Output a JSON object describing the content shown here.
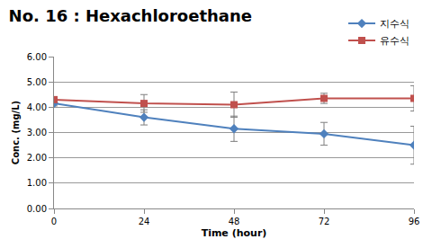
{
  "chart_data": {
    "type": "line",
    "title": "No. 16 : Hexachloroethane",
    "x_label": "Time (hour)",
    "y_label": "Conc. (mg/L)",
    "x": [
      0,
      24,
      48,
      72,
      96
    ],
    "series": [
      {
        "name": "지수식",
        "color": "#4f81bd",
        "marker": "diamond",
        "values": [
          4.15,
          3.6,
          3.15,
          2.95,
          2.5
        ],
        "error": [
          0.1,
          0.3,
          0.5,
          0.45,
          0.75
        ]
      },
      {
        "name": "유수식",
        "color": "#c0504d",
        "marker": "square",
        "values": [
          4.3,
          4.15,
          4.1,
          4.35,
          4.35
        ],
        "error": [
          0.1,
          0.35,
          0.5,
          0.2,
          0.5
        ]
      }
    ],
    "xlim": [
      0,
      96
    ],
    "xticks": [
      0,
      24,
      48,
      72,
      96
    ],
    "ylim": [
      0,
      6
    ],
    "yticks": [
      {
        "value": 0,
        "label": "0.00"
      },
      {
        "value": 1,
        "label": "1.00"
      },
      {
        "value": 2,
        "label": "2.00"
      },
      {
        "value": 3,
        "label": "3.00"
      },
      {
        "value": 4,
        "label": "4.00"
      },
      {
        "value": 5,
        "label": "5.00"
      },
      {
        "value": 6,
        "label": "6.00"
      }
    ],
    "grid": true,
    "legend": "top right"
  }
}
